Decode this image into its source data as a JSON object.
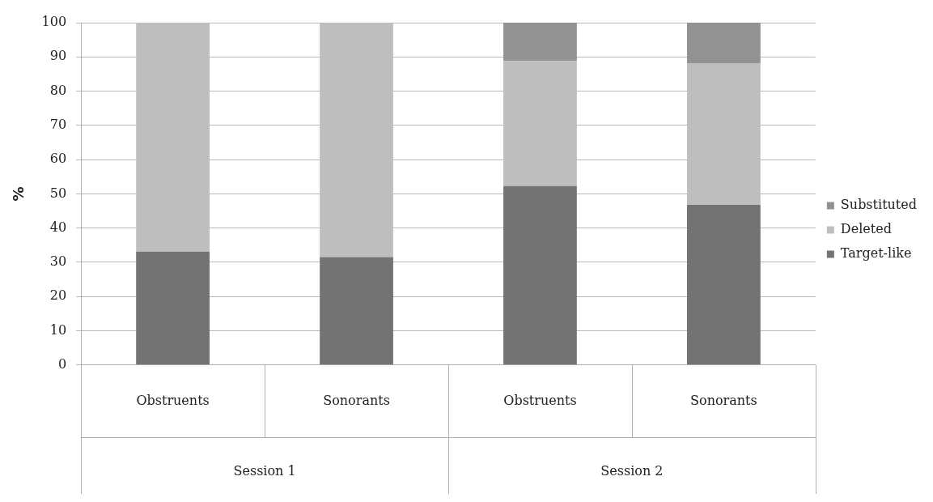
{
  "chart_data": {
    "type": "bar",
    "stacked": true,
    "ylabel": "%",
    "categories": [
      "Obstruents",
      "Sonorants",
      "Obstruents",
      "Sonorants"
    ],
    "series": [
      {
        "name": "Target-like",
        "color": "#737373",
        "values": [
          33.1,
          31.5,
          52.3,
          46.8
        ]
      },
      {
        "name": "Deleted",
        "color": "#bebebe",
        "values": [
          66.9,
          68.5,
          36.5,
          41.4
        ]
      },
      {
        "name": "Substituted",
        "color": "#929292",
        "values": [
          null,
          null,
          11.2,
          11.8
        ]
      }
    ],
    "ylim": [
      0,
      100
    ],
    "yticks": [
      0,
      10,
      20,
      30,
      40,
      50,
      60,
      70,
      80,
      90,
      100
    ],
    "grid": "y",
    "legend": "right",
    "annotations": [
      "Session 1",
      "Session 2"
    ]
  }
}
